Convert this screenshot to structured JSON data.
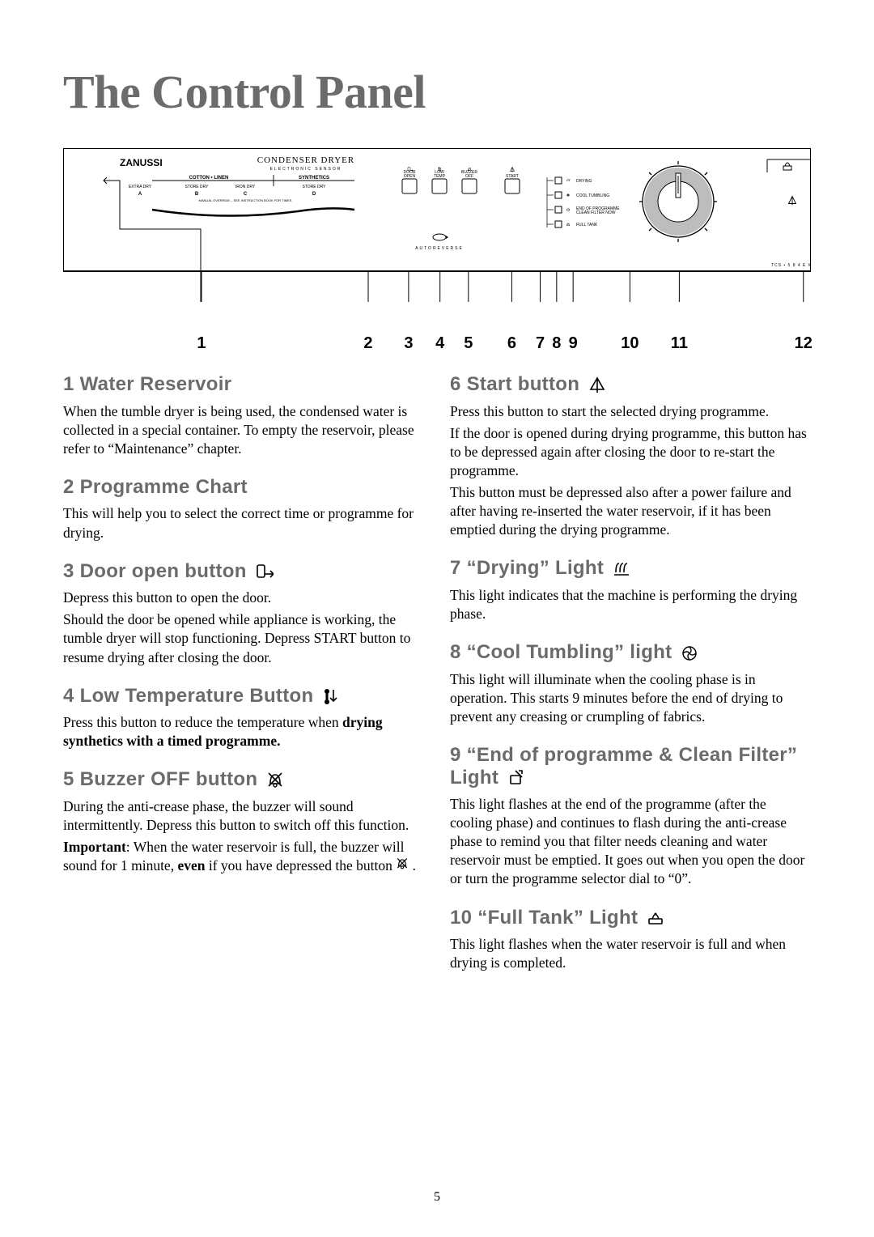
{
  "title": "The Control Panel",
  "page_number": "5",
  "colors": {
    "heading_grey": "#6b6b6b",
    "body_black": "#000000",
    "background": "#ffffff",
    "diagram_stroke": "#000000",
    "dial_grey": "#bdbdbd"
  },
  "diagram": {
    "brand": "ZANUSSI",
    "product_line1": "CONDENSER DRYER",
    "product_line2": "ELECTRONIC SENSOR",
    "autoreverse": "AUTOREVERSE",
    "model": "TCS • 5 8 4 E W",
    "chart": {
      "header_left": "COTTON • LINEN",
      "header_right": "SYNTHETICS",
      "col_labels_top": [
        "EXTRA DRY",
        "STORE DRY",
        "IRON DRY",
        "STORE DRY"
      ],
      "col_labels_bottom": [
        "A",
        "B",
        "C",
        "D"
      ],
      "footnote": "MANUAL OVERRIDE – SEE INSTRUCTION BOOK FOR TIMES"
    },
    "buttons": [
      {
        "line1": "DOOR",
        "line2": "OPEN"
      },
      {
        "line1": "LOW",
        "line2": "TEMP"
      },
      {
        "line1": "BUZZER",
        "line2": "OFF"
      }
    ],
    "start_label": "START",
    "lights": [
      {
        "label": "DRYING"
      },
      {
        "label": "COOL TUMBLING"
      },
      {
        "label": "END OF PROGRAMME\\nCLEAN FILTER NOW"
      },
      {
        "label": "FULL TANK"
      }
    ]
  },
  "callouts": [
    "1",
    "2",
    "3",
    "4",
    "5",
    "6",
    "7",
    "8",
    "9",
    "10",
    "11",
    "12"
  ],
  "callout_positions_pct": [
    18.5,
    40.8,
    46.2,
    50.4,
    54.2,
    60.0,
    63.8,
    66.0,
    68.2,
    75.8,
    82.4,
    99.0
  ],
  "sections_left": [
    {
      "title": "1 Water Reservoir",
      "icon": null,
      "paragraphs": [
        {
          "runs": [
            {
              "t": "When the tumble dryer is being used, the condensed water is collected in a special container. To empty the reservoir, please refer to “Maintenance” chapter."
            }
          ]
        }
      ]
    },
    {
      "title": "2 Programme Chart",
      "icon": null,
      "paragraphs": [
        {
          "runs": [
            {
              "t": "This will help you to select the correct time or programme for drying."
            }
          ]
        }
      ]
    },
    {
      "title": "3 Door open button",
      "icon": "door",
      "paragraphs": [
        {
          "runs": [
            {
              "t": "Depress this button to open the door."
            }
          ]
        },
        {
          "runs": [
            {
              "t": "Should the door be opened while appliance is working, the tumble dryer will stop functioning. Depress START button to resume drying after closing the door."
            }
          ]
        }
      ]
    },
    {
      "title": "4 Low Temperature Button",
      "icon": "lowtemp",
      "paragraphs": [
        {
          "runs": [
            {
              "t": "Press this button to reduce the temperature when "
            },
            {
              "t": "drying synthetics with a timed programme.",
              "b": true
            }
          ]
        }
      ]
    },
    {
      "title": "5 Buzzer OFF button",
      "icon": "buzzer",
      "paragraphs": [
        {
          "runs": [
            {
              "t": "During the anti-crease phase, the buzzer will sound intermittently. Depress this button to switch off this function."
            }
          ]
        },
        {
          "runs": [
            {
              "t": "Important",
              "b": true
            },
            {
              "t": ": When the water reservoir is full, the buzzer will sound for 1 minute, "
            },
            {
              "t": "even",
              "b": true
            },
            {
              "t": " if you have depressed the button "
            },
            {
              "icon": "buzzer"
            },
            {
              "t": " ."
            }
          ]
        }
      ]
    }
  ],
  "sections_right": [
    {
      "title": "6 Start button",
      "icon": "start",
      "paragraphs": [
        {
          "runs": [
            {
              "t": "Press this button to start the selected drying programme."
            }
          ]
        },
        {
          "runs": [
            {
              "t": "If the door is opened during drying programme, this button has to be depressed again after closing the door to re-start the programme."
            }
          ]
        },
        {
          "runs": [
            {
              "t": "This button must be depressed also after a power failure and after having re-inserted the water reservoir, if it has been emptied during the drying programme."
            }
          ]
        }
      ]
    },
    {
      "title": "7 “Drying” Light",
      "icon": "drying",
      "paragraphs": [
        {
          "runs": [
            {
              "t": "This light indicates that the machine is performing the drying phase."
            }
          ]
        }
      ]
    },
    {
      "title": "8 “Cool Tumbling” light",
      "icon": "fan",
      "paragraphs": [
        {
          "runs": [
            {
              "t": "This light will illuminate when the cooling phase is in operation. This starts 9 minutes before the end of drying to prevent any creasing or crumpling of fabrics."
            }
          ]
        }
      ]
    },
    {
      "title": "9 “End of programme & Clean Filter” Light",
      "icon": "filter",
      "paragraphs": [
        {
          "runs": [
            {
              "t": "This light flashes at the end of the programme (after the cooling phase) and continues to flash during the anti-crease phase to remind you that filter needs cleaning and water reservoir must be emptied. It goes out when you open the door or turn the programme selector dial to “0”."
            }
          ]
        }
      ]
    },
    {
      "title": "10 “Full Tank” Light",
      "icon": "fulltank",
      "paragraphs": [
        {
          "runs": [
            {
              "t": "This light flashes when the water reservoir is full and when drying is completed."
            }
          ]
        }
      ]
    }
  ]
}
